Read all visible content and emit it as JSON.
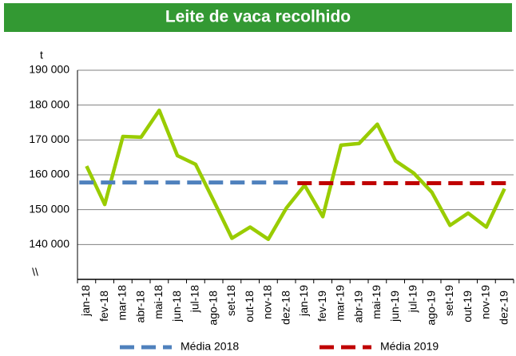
{
  "chart_data": {
    "type": "line",
    "title": "Leite de vaca recolhido",
    "y_label": "t",
    "axis_break": "\\\\",
    "categories": [
      "jan-18",
      "fev-18",
      "mar-18",
      "abr-18",
      "mai-18",
      "jun-18",
      "jul-18",
      "ago-18",
      "set-18",
      "out-18",
      "nov-18",
      "dez-18",
      "jan-19",
      "fev-19",
      "mar-19",
      "abr-19",
      "mai-19",
      "jun-19",
      "jul-19",
      "ago-19",
      "set-19",
      "out-19",
      "nov-19",
      "dez-19"
    ],
    "series": [
      {
        "color": "#99cc00",
        "values": [
          162500,
          151500,
          171000,
          170800,
          178500,
          165500,
          163000,
          152500,
          141800,
          145000,
          141500,
          150500,
          157000,
          148000,
          168500,
          169000,
          174500,
          164000,
          160500,
          155000,
          145500,
          149000,
          145000,
          156000
        ]
      },
      {
        "name": "Média 2018",
        "color": "#4f81bd",
        "dashed": true,
        "values": [
          157800,
          157800,
          157800,
          157800,
          157800,
          157800,
          157800,
          157800,
          157800,
          157800,
          157800,
          157800,
          null,
          null,
          null,
          null,
          null,
          null,
          null,
          null,
          null,
          null,
          null,
          null
        ]
      },
      {
        "name": "Média 2019",
        "color": "#c00000",
        "dashed": true,
        "values": [
          null,
          null,
          null,
          null,
          null,
          null,
          null,
          null,
          null,
          null,
          null,
          null,
          157600,
          157600,
          157600,
          157600,
          157600,
          157600,
          157600,
          157600,
          157600,
          157600,
          157600,
          157600
        ]
      }
    ],
    "ylim": [
      130000,
      190000
    ],
    "yticks": [
      {
        "value": 140000,
        "label": "140 000"
      },
      {
        "value": 150000,
        "label": "150 000"
      },
      {
        "value": 160000,
        "label": "160 000"
      },
      {
        "value": 170000,
        "label": "170 000"
      },
      {
        "value": 180000,
        "label": "180 000"
      },
      {
        "value": 190000,
        "label": "190 000"
      }
    ],
    "grid": true,
    "legend": "bottom"
  }
}
